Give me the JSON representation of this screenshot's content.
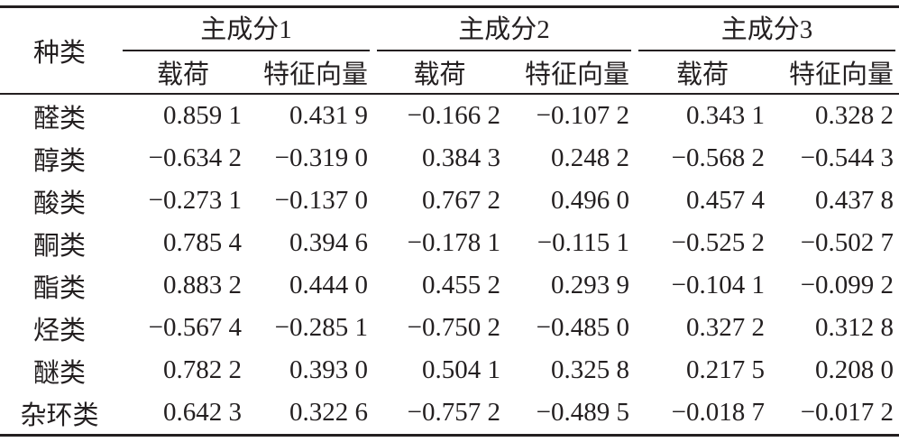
{
  "table": {
    "header": {
      "label": "种类",
      "groups": [
        {
          "title": "主成分1",
          "columns": [
            "载荷",
            "特征向量"
          ]
        },
        {
          "title": "主成分2",
          "columns": [
            "载荷",
            "特征向量"
          ]
        },
        {
          "title": "主成分3",
          "columns": [
            "载荷",
            "特征向量"
          ]
        }
      ]
    },
    "rows": [
      [
        "醛类",
        "0.859 1",
        "0.431 9",
        "−0.166 2",
        "−0.107 2",
        "0.343 1",
        "0.328 2"
      ],
      [
        "醇类",
        "−0.634 2",
        "−0.319 0",
        "0.384 3",
        "0.248 2",
        "−0.568 2",
        "−0.544 3"
      ],
      [
        "酸类",
        "−0.273 1",
        "−0.137 0",
        "0.767 2",
        "0.496 0",
        "0.457 4",
        "0.437 8"
      ],
      [
        "酮类",
        "0.785 4",
        "0.394 6",
        "−0.178 1",
        "−0.115 1",
        "−0.525 2",
        "−0.502 7"
      ],
      [
        "酯类",
        "0.883 2",
        "0.444 0",
        "0.455 2",
        "0.293 9",
        "−0.104 1",
        "−0.099 2"
      ],
      [
        "烃类",
        "−0.567 4",
        "−0.285 1",
        "−0.750 2",
        "−0.485 0",
        "0.327 2",
        "0.312 8"
      ],
      [
        "醚类",
        "0.782 2",
        "0.393 0",
        "0.504 1",
        "0.325 8",
        "0.217 5",
        "0.208 0"
      ],
      [
        "杂环类",
        "0.642 3",
        "0.322 6",
        "−0.757 2",
        "−0.489 5",
        "−0.018 7",
        "−0.017 2"
      ]
    ]
  }
}
